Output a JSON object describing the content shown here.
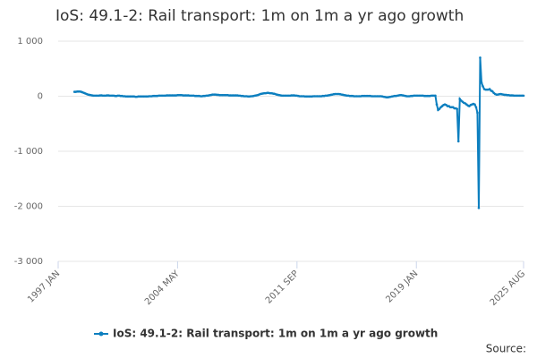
{
  "chart_data": {
    "type": "line",
    "title": "IoS: 49.1-2: Rail transport: 1m on 1m a yr ago growth",
    "source": "Source:",
    "categories": [
      "1997 JAN",
      null,
      null,
      null,
      null,
      null,
      null,
      null,
      null,
      null,
      null,
      null,
      null,
      null,
      null,
      null,
      null,
      null,
      null,
      null,
      null,
      null,
      null,
      null,
      null,
      null,
      null,
      null,
      null,
      null,
      null,
      null,
      null,
      null,
      null,
      null,
      null,
      null,
      null,
      null,
      null,
      null,
      null,
      null,
      null,
      null,
      null,
      null,
      null,
      null,
      null,
      null,
      null,
      null,
      null,
      null,
      null,
      null,
      null,
      null,
      null,
      null,
      null,
      null,
      null,
      null,
      null,
      null,
      null,
      null,
      null,
      null,
      null,
      null,
      null,
      null,
      null,
      null,
      null,
      null,
      null,
      null,
      null,
      null,
      null,
      null,
      null,
      null,
      "2004 MAY",
      null,
      null,
      null,
      null,
      null,
      null,
      null,
      null,
      null,
      null,
      null,
      null,
      null,
      null,
      null,
      null,
      null,
      null,
      null,
      null,
      null,
      null,
      null,
      null,
      null,
      null,
      null,
      null,
      null,
      null,
      null,
      null,
      null,
      null,
      null,
      null,
      null,
      null,
      null,
      null,
      null,
      null,
      null,
      null,
      null,
      null,
      null,
      null,
      null,
      null,
      null,
      null,
      null,
      null,
      null,
      null,
      null,
      null,
      null,
      null,
      null,
      null,
      null,
      null,
      null,
      null,
      null,
      null,
      null,
      null,
      null,
      null,
      null,
      null,
      null,
      null,
      null,
      null,
      null,
      null,
      null,
      null,
      null,
      null,
      null,
      null,
      null,
      "2011 SEP",
      null,
      null,
      null,
      null,
      null,
      null,
      null,
      null,
      null,
      null,
      null,
      null,
      null,
      null,
      null,
      null,
      null,
      null,
      null,
      null,
      null,
      null,
      null,
      null,
      null,
      null,
      null,
      null,
      null,
      null,
      null,
      null,
      null,
      null,
      null,
      null,
      null,
      null,
      null,
      null,
      null,
      null,
      null,
      null,
      null,
      null,
      null,
      null,
      null,
      null,
      null,
      null,
      null,
      null,
      null,
      null,
      null,
      null,
      null,
      null,
      null,
      null,
      null,
      null,
      null,
      null,
      null,
      null,
      null,
      null,
      null,
      null,
      null,
      null,
      null,
      null,
      null,
      null,
      null,
      null,
      null,
      null,
      null,
      null,
      null,
      null,
      null,
      "2019 JAN",
      null,
      null,
      null,
      null,
      null,
      null,
      null,
      null,
      null,
      null,
      null,
      null,
      null,
      null,
      null,
      null,
      null,
      null,
      null,
      null,
      null,
      null,
      null,
      null,
      null,
      null,
      null,
      null,
      null,
      null,
      null,
      null,
      null,
      null,
      null,
      null,
      null,
      null,
      null,
      null,
      null,
      null,
      null,
      null,
      null,
      null,
      null,
      null,
      null,
      null,
      null,
      null,
      null,
      null,
      null,
      null,
      null,
      null,
      null,
      null,
      null,
      null,
      null,
      null,
      null,
      null,
      null,
      null,
      null,
      null,
      null,
      null,
      null,
      null,
      null,
      null,
      null,
      null,
      "2025 AUG"
    ],
    "series": [
      {
        "name": "IoS: 49.1-2: Rail transport: 1m on 1m a yr ago growth",
        "color": "#0d7fbf",
        "values": [
          null,
          null,
          null,
          null,
          null,
          null,
          null,
          null,
          null,
          null,
          null,
          null,
          80,
          80,
          85,
          85,
          85,
          80,
          70,
          60,
          50,
          40,
          30,
          25,
          20,
          15,
          10,
          10,
          10,
          10,
          10,
          15,
          15,
          10,
          10,
          10,
          15,
          15,
          10,
          10,
          10,
          10,
          5,
          5,
          10,
          10,
          5,
          5,
          0,
          0,
          -5,
          -5,
          -5,
          -5,
          -5,
          -5,
          -5,
          -10,
          -10,
          -5,
          -5,
          -5,
          -5,
          -5,
          -5,
          -5,
          -5,
          0,
          0,
          0,
          5,
          5,
          5,
          5,
          10,
          10,
          10,
          10,
          10,
          10,
          15,
          15,
          15,
          15,
          15,
          15,
          15,
          15,
          20,
          20,
          20,
          20,
          15,
          15,
          15,
          15,
          15,
          10,
          10,
          10,
          10,
          5,
          5,
          5,
          5,
          0,
          0,
          5,
          5,
          10,
          10,
          15,
          20,
          25,
          30,
          30,
          30,
          25,
          25,
          20,
          20,
          20,
          20,
          20,
          20,
          20,
          15,
          15,
          15,
          15,
          15,
          15,
          15,
          10,
          10,
          5,
          5,
          0,
          0,
          0,
          -5,
          -5,
          0,
          0,
          5,
          10,
          15,
          20,
          30,
          40,
          45,
          50,
          55,
          55,
          60,
          60,
          55,
          55,
          50,
          45,
          40,
          30,
          25,
          20,
          15,
          10,
          10,
          10,
          10,
          10,
          10,
          10,
          15,
          15,
          15,
          10,
          10,
          5,
          0,
          0,
          0,
          0,
          -5,
          -5,
          -5,
          -5,
          -5,
          -5,
          0,
          0,
          0,
          0,
          0,
          0,
          0,
          5,
          5,
          10,
          10,
          15,
          20,
          25,
          30,
          35,
          40,
          40,
          40,
          40,
          35,
          30,
          25,
          20,
          15,
          10,
          10,
          5,
          5,
          5,
          0,
          0,
          0,
          0,
          0,
          0,
          5,
          5,
          5,
          5,
          5,
          5,
          5,
          0,
          0,
          0,
          0,
          0,
          0,
          0,
          0,
          -5,
          -10,
          -15,
          -20,
          -20,
          -15,
          -10,
          -5,
          0,
          5,
          5,
          10,
          15,
          20,
          20,
          15,
          10,
          5,
          0,
          0,
          0,
          5,
          5,
          10,
          10,
          10,
          10,
          10,
          10,
          10,
          10,
          5,
          5,
          5,
          5,
          5,
          10,
          10,
          10,
          10,
          -150,
          -250,
          -230,
          -200,
          -180,
          -160,
          -150,
          -160,
          -180,
          -180,
          -200,
          -200,
          -200,
          -220,
          -220,
          -230,
          -820,
          -50,
          -80,
          -100,
          -120,
          -130,
          -150,
          -170,
          -180,
          -160,
          -150,
          -140,
          -150,
          -200,
          -300,
          -2030,
          700,
          250,
          180,
          130,
          120,
          120,
          120,
          130,
          100,
          90,
          60,
          40,
          30,
          30,
          35,
          40,
          35,
          30,
          25,
          25,
          20,
          20,
          15,
          15,
          15,
          10,
          10,
          10,
          10,
          10,
          10,
          10,
          10
        ]
      }
    ],
    "ylim": [
      -3000,
      1000
    ],
    "yticks": [
      {
        "value": -3000,
        "label": "-3 000"
      },
      {
        "value": -2000,
        "label": "-2 000"
      },
      {
        "value": -1000,
        "label": "-1 000"
      },
      0,
      {
        "value": 1000,
        "label": "1 000"
      }
    ],
    "grid": true,
    "legend": "bottom"
  }
}
